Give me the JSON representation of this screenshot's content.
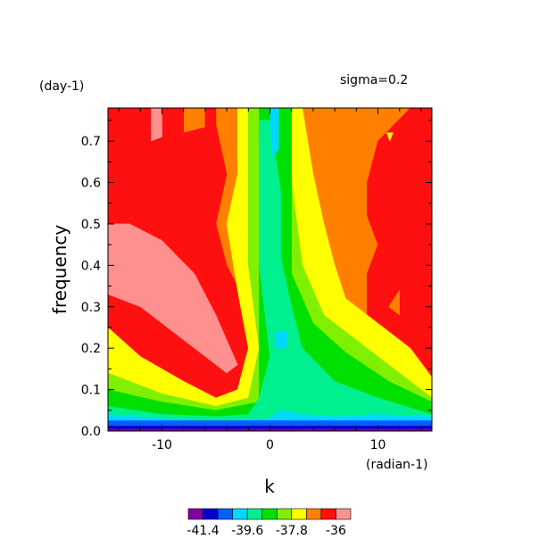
{
  "chart_data": {
    "type": "heatmap",
    "xlabel": "k",
    "ylabel": "frequency",
    "x_unit": "(radian-1)",
    "y_unit": "(day-1)",
    "annotation": "sigma=0.2",
    "xlim": [
      -15,
      15
    ],
    "ylim": [
      0,
      0.78
    ],
    "x_ticks": [
      -10,
      0,
      10
    ],
    "x_tick_labels": [
      "-10",
      "0",
      "10"
    ],
    "y_ticks": [
      0.0,
      0.1,
      0.2,
      0.3,
      0.4,
      0.5,
      0.6,
      0.7
    ],
    "y_tick_labels": [
      "0.0",
      "0.1",
      "0.2",
      "0.3",
      "0.4",
      "0.5",
      "0.6",
      "0.7"
    ],
    "grid": false,
    "colorbar": {
      "colors": [
        "#8000a0",
        "#0000d0",
        "#0060ff",
        "#00d8ff",
        "#00f090",
        "#00e000",
        "#80f000",
        "#ffff00",
        "#ff8000",
        "#ff1010",
        "#ff9090"
      ],
      "levels": [
        -41.4,
        -40.8,
        -40.2,
        -39.6,
        -39.0,
        -38.4,
        -37.8,
        -37.2,
        -36.6,
        -36.0
      ],
      "tick_labels": [
        "-41.4",
        "-39.6",
        "-37.8",
        "-36"
      ]
    },
    "regions": [
      {
        "color": "#ff8000",
        "points": [
          [
            -15,
            0.78
          ],
          [
            15,
            0.78
          ],
          [
            15,
            0
          ],
          [
            -15,
            0
          ]
        ]
      },
      {
        "color": "#ff1010",
        "points": [
          [
            -15,
            0.78
          ],
          [
            -8,
            0.78
          ],
          [
            -8,
            0.72
          ],
          [
            -5,
            0.74
          ],
          [
            -4,
            0.62
          ],
          [
            -5,
            0.5
          ],
          [
            -4,
            0.4
          ],
          [
            -3,
            0.35
          ],
          [
            -2,
            0.2
          ],
          [
            -1,
            0.12
          ],
          [
            -2,
            0.07
          ],
          [
            -5,
            0.06
          ],
          [
            -9,
            0.1
          ],
          [
            -12,
            0.14
          ],
          [
            -15,
            0.2
          ]
        ]
      },
      {
        "color": "#ff1010",
        "points": [
          [
            -6,
            0.78
          ],
          [
            -5,
            0.78
          ],
          [
            -5,
            0.7
          ],
          [
            -6,
            0.72
          ]
        ]
      },
      {
        "color": "#ff1010",
        "points": [
          [
            9,
            0.6
          ],
          [
            10,
            0.7
          ],
          [
            13,
            0.78
          ],
          [
            15,
            0.78
          ],
          [
            15,
            0.1
          ],
          [
            13,
            0.16
          ],
          [
            11,
            0.22
          ],
          [
            9,
            0.28
          ],
          [
            9,
            0.38
          ],
          [
            10,
            0.45
          ],
          [
            9,
            0.52
          ]
        ]
      },
      {
        "color": "#ff8000",
        "points": [
          [
            11,
            0.3
          ],
          [
            12,
            0.34
          ],
          [
            12,
            0.28
          ]
        ]
      },
      {
        "color": "#ff9090",
        "points": [
          [
            -11,
            0.78
          ],
          [
            -10,
            0.78
          ],
          [
            -10,
            0.71
          ],
          [
            -11,
            0.7
          ]
        ]
      },
      {
        "color": "#ff9090",
        "points": [
          [
            -15,
            0.5
          ],
          [
            -13,
            0.5
          ],
          [
            -10,
            0.46
          ],
          [
            -7,
            0.38
          ],
          [
            -5,
            0.28
          ],
          [
            -3,
            0.16
          ],
          [
            -4,
            0.14
          ],
          [
            -6,
            0.18
          ],
          [
            -9,
            0.24
          ],
          [
            -12,
            0.3
          ],
          [
            -15,
            0.33
          ]
        ]
      },
      {
        "color": "#ffff00",
        "points": [
          [
            -3,
            0.78
          ],
          [
            3,
            0.78
          ],
          [
            4,
            0.62
          ],
          [
            5,
            0.5
          ],
          [
            6,
            0.4
          ],
          [
            7,
            0.32
          ],
          [
            10,
            0.26
          ],
          [
            13,
            0.2
          ],
          [
            15,
            0.13
          ],
          [
            15,
            0.05
          ],
          [
            11,
            0.09
          ],
          [
            6,
            0.09
          ],
          [
            2,
            0.08
          ],
          [
            -1,
            0.06
          ],
          [
            -4,
            0.05
          ],
          [
            -9,
            0.06
          ],
          [
            -13,
            0.12
          ],
          [
            -15,
            0.14
          ],
          [
            -15,
            0.25
          ],
          [
            -12,
            0.18
          ],
          [
            -8,
            0.12
          ],
          [
            -5,
            0.08
          ],
          [
            -3,
            0.1
          ],
          [
            -2,
            0.2
          ],
          [
            -3,
            0.34
          ],
          [
            -4,
            0.5
          ],
          [
            -3,
            0.62
          ]
        ]
      },
      {
        "color": "#80f000",
        "points": [
          [
            -2,
            0.78
          ],
          [
            2,
            0.78
          ],
          [
            2,
            0.6
          ],
          [
            3,
            0.4
          ],
          [
            5,
            0.28
          ],
          [
            9,
            0.2
          ],
          [
            13,
            0.12
          ],
          [
            15,
            0.08
          ],
          [
            15,
            0.04
          ],
          [
            11,
            0.06
          ],
          [
            6,
            0.06
          ],
          [
            2,
            0.05
          ],
          [
            -1,
            0.04
          ],
          [
            -5,
            0.04
          ],
          [
            -10,
            0.05
          ],
          [
            -15,
            0.08
          ],
          [
            -15,
            0.14
          ],
          [
            -10,
            0.09
          ],
          [
            -5,
            0.06
          ],
          [
            -2,
            0.08
          ],
          [
            -1,
            0.2
          ],
          [
            -2,
            0.4
          ],
          [
            -2,
            0.6
          ]
        ]
      },
      {
        "color": "#00e000",
        "points": [
          [
            -1,
            0.78
          ],
          [
            2,
            0.78
          ],
          [
            2,
            0.58
          ],
          [
            2,
            0.38
          ],
          [
            4,
            0.26
          ],
          [
            7,
            0.19
          ],
          [
            11,
            0.12
          ],
          [
            15,
            0.07
          ],
          [
            15,
            0.04
          ],
          [
            10,
            0.05
          ],
          [
            5,
            0.05
          ],
          [
            2,
            0.04
          ],
          [
            -1,
            0.03
          ],
          [
            -5,
            0.03
          ],
          [
            -10,
            0.04
          ],
          [
            -15,
            0.06
          ],
          [
            -15,
            0.1
          ],
          [
            -10,
            0.07
          ],
          [
            -5,
            0.05
          ],
          [
            -1,
            0.07
          ],
          [
            -1,
            0.2
          ],
          [
            -1,
            0.45
          ]
        ]
      },
      {
        "color": "#00f090",
        "points": [
          [
            -1,
            0.75
          ],
          [
            0,
            0.75
          ],
          [
            1,
            0.58
          ],
          [
            1,
            0.42
          ],
          [
            2,
            0.3
          ],
          [
            3,
            0.2
          ],
          [
            6,
            0.12
          ],
          [
            10,
            0.08
          ],
          [
            15,
            0.04
          ],
          [
            15,
            0.03
          ],
          [
            10,
            0.035
          ],
          [
            5,
            0.035
          ],
          [
            0,
            0.03
          ],
          [
            -5,
            0.025
          ],
          [
            -10,
            0.03
          ],
          [
            -15,
            0.04
          ],
          [
            -15,
            0.06
          ],
          [
            -10,
            0.04
          ],
          [
            -5,
            0.035
          ],
          [
            -2,
            0.04
          ],
          [
            -1,
            0.08
          ],
          [
            0,
            0.18
          ],
          [
            -1,
            0.4
          ],
          [
            -1,
            0.6
          ]
        ]
      },
      {
        "color": "#00d8ff",
        "points": [
          [
            0,
            0.78
          ],
          [
            0.8,
            0.78
          ],
          [
            0.8,
            0.68
          ],
          [
            0.2,
            0.66
          ]
        ]
      },
      {
        "color": "#00d8ff",
        "points": [
          [
            0.5,
            0.24
          ],
          [
            1.6,
            0.24
          ],
          [
            1.5,
            0.2
          ],
          [
            0.6,
            0.2
          ]
        ]
      },
      {
        "color": "#00d8ff",
        "points": [
          [
            -15,
            0.04
          ],
          [
            -10,
            0.03
          ],
          [
            -5,
            0.025
          ],
          [
            0,
            0.03
          ],
          [
            1,
            0.05
          ],
          [
            3,
            0.04
          ],
          [
            6,
            0.035
          ],
          [
            10,
            0.04
          ],
          [
            15,
            0.035
          ],
          [
            15,
            0.02
          ],
          [
            -15,
            0.02
          ]
        ]
      },
      {
        "color": "#0060ff",
        "points": [
          [
            -15,
            0.025
          ],
          [
            15,
            0.025
          ],
          [
            15,
            0.01
          ],
          [
            -15,
            0.01
          ]
        ]
      },
      {
        "color": "#0000d0",
        "points": [
          [
            -15,
            0.012
          ],
          [
            15,
            0.012
          ],
          [
            15,
            0.004
          ],
          [
            -15,
            0.004
          ]
        ]
      },
      {
        "color": "#8000a0",
        "points": [
          [
            -15,
            0.005
          ],
          [
            15,
            0.005
          ],
          [
            15,
            0
          ],
          [
            -15,
            0
          ]
        ]
      },
      {
        "color": "#ffff00",
        "points": [
          [
            10.8,
            0.72
          ],
          [
            11.4,
            0.72
          ],
          [
            11.1,
            0.7
          ]
        ]
      }
    ]
  }
}
